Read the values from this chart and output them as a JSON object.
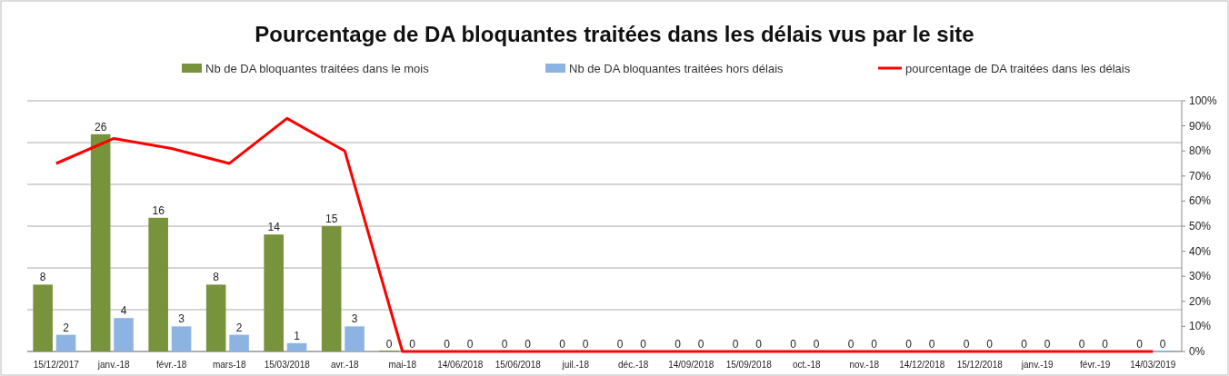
{
  "chart_data": {
    "type": "bar",
    "title": "Pourcentage de DA bloquantes traitées dans les délais vus par le site",
    "categories": [
      "15/12/2017",
      "janv.-18",
      "févr.-18",
      "mars-18",
      "15/03/2018",
      "avr.-18",
      "mai-18",
      "14/06/2018",
      "15/06/2018",
      "juil.-18",
      "déc.-18",
      "14/09/2018",
      "15/09/2018",
      "oct.-18",
      "nov.-18",
      "14/12/2018",
      "15/12/2018",
      "janv.-19",
      "févr.-19",
      "14/03/2019"
    ],
    "series": [
      {
        "name": "Nb de DA bloquantes traitées dans le mois",
        "color": "#77933c",
        "values": [
          8,
          26,
          16,
          8,
          14,
          15,
          0,
          0,
          0,
          0,
          0,
          0,
          0,
          0,
          0,
          0,
          0,
          0,
          0,
          0
        ],
        "value_labels": [
          "8",
          "26",
          "16",
          "8",
          "14",
          "15",
          "0",
          "0",
          "0",
          "0",
          "0",
          "0",
          "0",
          "0",
          "0",
          "0",
          "0",
          "0",
          "0",
          "0"
        ]
      },
      {
        "name": "Nb de DA bloquantes traitées hors délais",
        "color": "#8db3e2",
        "values": [
          2,
          4,
          3,
          2,
          1,
          3,
          0,
          0,
          0,
          0,
          0,
          0,
          0,
          0,
          0,
          0,
          0,
          0,
          0,
          0
        ],
        "value_labels": [
          "2",
          "4",
          "3",
          "2",
          "1",
          "3",
          "0",
          "0",
          "0",
          "0",
          "0",
          "0",
          "0",
          "0",
          "0",
          "0",
          "0",
          "0",
          "0",
          "0"
        ]
      },
      {
        "name": "pourcentage de DA traitées dans les délais",
        "type": "line",
        "axis": "y2",
        "color": "#ff0000",
        "values": [
          75,
          85,
          81,
          75,
          93,
          80,
          0,
          0,
          0,
          0,
          0,
          0,
          0,
          0,
          0,
          0,
          0,
          0,
          0,
          0
        ]
      }
    ],
    "ylim": [
      0,
      30
    ],
    "yticks": [
      {
        "value": 0,
        "label": null
      },
      {
        "value": 5,
        "label": null
      },
      {
        "value": 10,
        "label": null
      },
      {
        "value": 15,
        "label": null
      },
      {
        "value": 20,
        "label": null
      },
      {
        "value": 25,
        "label": null
      },
      {
        "value": 30,
        "label": null
      }
    ],
    "y2lim": [
      0,
      100
    ],
    "y2ticks": [
      {
        "value": 0,
        "label": "0%"
      },
      {
        "value": 10,
        "label": "10%"
      },
      {
        "value": 20,
        "label": "20%"
      },
      {
        "value": 30,
        "label": "30%"
      },
      {
        "value": 40,
        "label": "40%"
      },
      {
        "value": 50,
        "label": "50%"
      },
      {
        "value": 60,
        "label": "60%"
      },
      {
        "value": 70,
        "label": "70%"
      },
      {
        "value": 80,
        "label": "80%"
      },
      {
        "value": 90,
        "label": "90%"
      },
      {
        "value": 100,
        "label": "100%"
      }
    ],
    "grid": "y",
    "legend": "top",
    "marker": "none",
    "line_style": "solid"
  }
}
